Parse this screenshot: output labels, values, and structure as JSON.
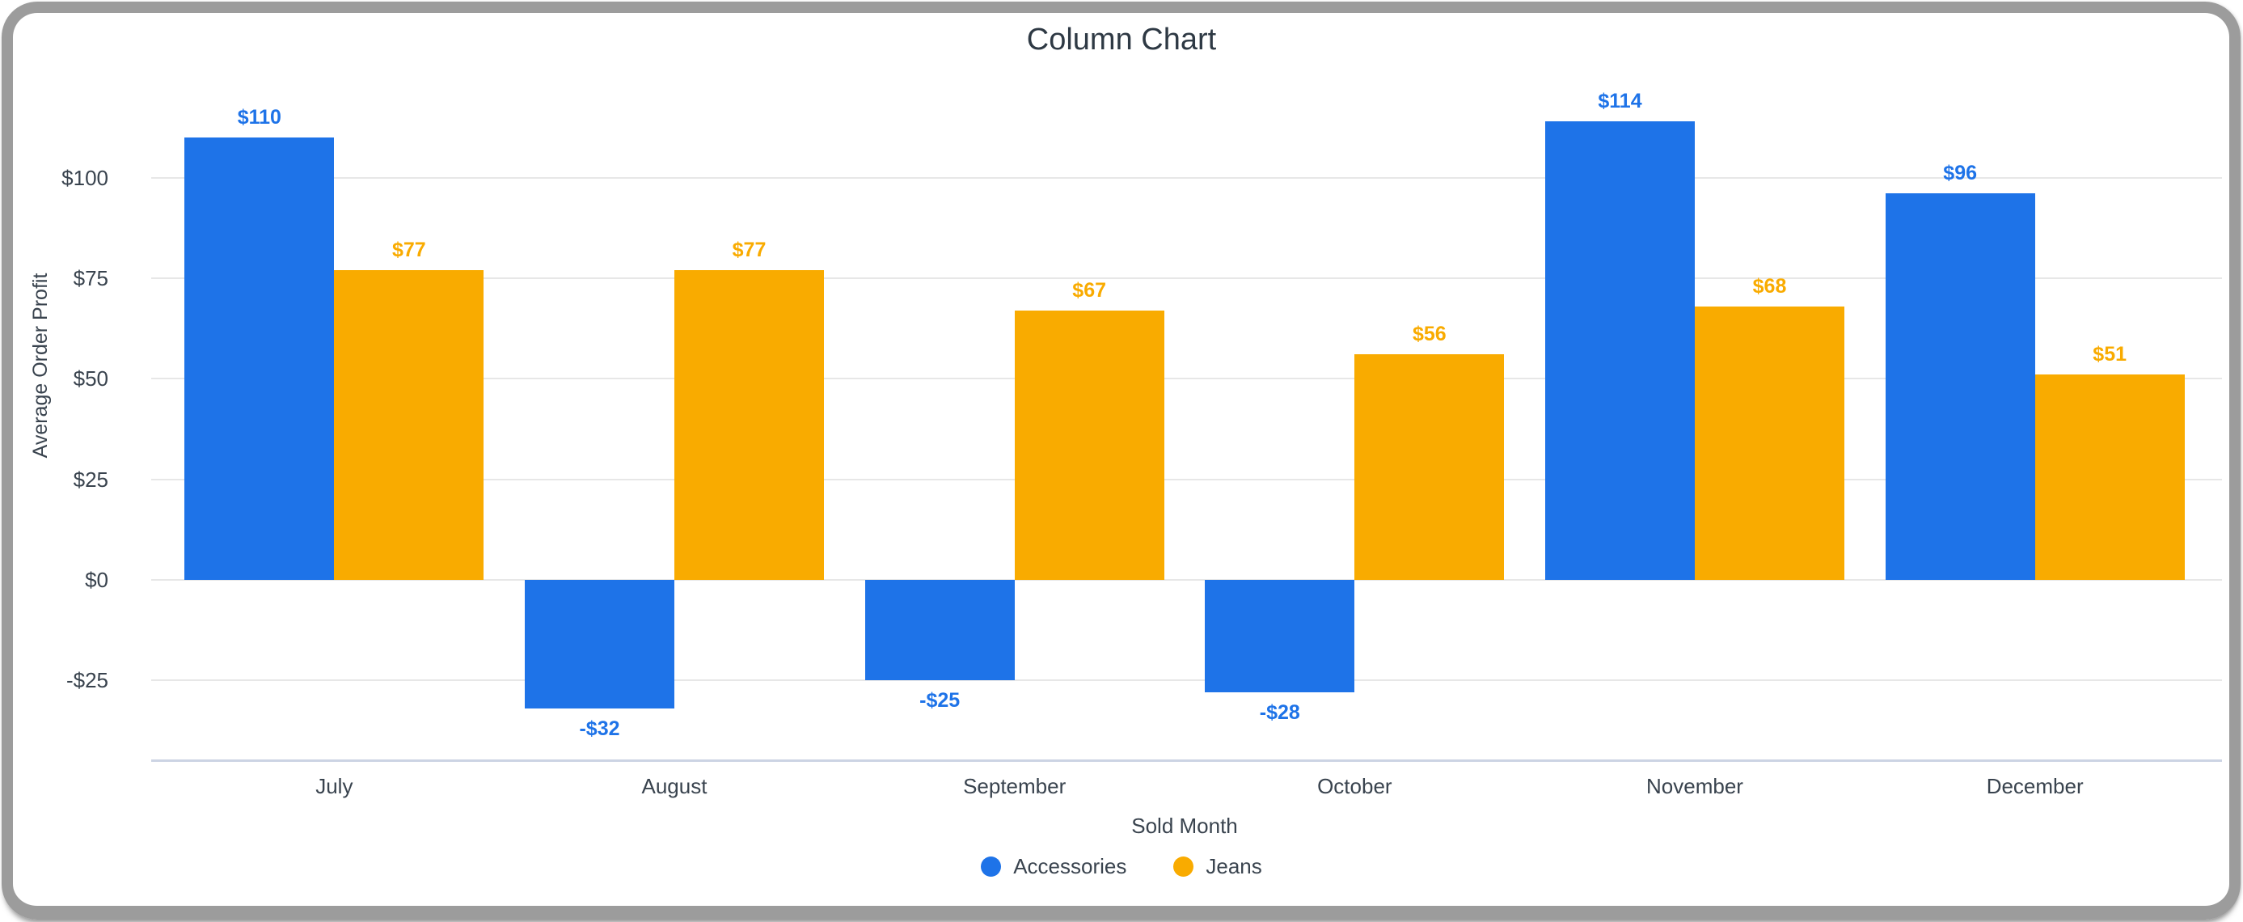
{
  "title": "Column Chart",
  "colors": {
    "accessories": "#1e73e8",
    "jeans": "#f9ab00",
    "gridline": "#e7e7e7",
    "axis_line": "#ccd4e4",
    "text": "#39434e",
    "title_text": "#2e3944",
    "frame": "#9c9c9c"
  },
  "y_axis": {
    "title": "Average Order Profit",
    "ticks": [
      "$100",
      "$75",
      "$50",
      "$25",
      "$0",
      "-$25"
    ],
    "tick_values": [
      100,
      75,
      50,
      25,
      0,
      -25
    ]
  },
  "x_axis": {
    "title": "Sold Month"
  },
  "legend": [
    {
      "label": "Accessories",
      "color": "#1e73e8"
    },
    {
      "label": "Jeans",
      "color": "#f9ab00"
    }
  ],
  "chart_data": {
    "type": "bar",
    "title": "Column Chart",
    "xlabel": "Sold Month",
    "ylabel": "Average Order Profit",
    "categories": [
      "July",
      "August",
      "September",
      "October",
      "November",
      "December"
    ],
    "series": [
      {
        "name": "Accessories",
        "color": "#1e73e8",
        "values": [
          110,
          -32,
          -25,
          -28,
          114,
          96
        ],
        "labels": [
          "$110",
          "-$32",
          "-$25",
          "-$28",
          "$114",
          "$96"
        ]
      },
      {
        "name": "Jeans",
        "color": "#f9ab00",
        "values": [
          77,
          77,
          67,
          56,
          68,
          51
        ],
        "labels": [
          "$77",
          "$77",
          "$67",
          "$56",
          "$68",
          "$51"
        ]
      }
    ],
    "ylim": [
      -45,
      118
    ],
    "grid": true,
    "legend_position": "bottom"
  }
}
